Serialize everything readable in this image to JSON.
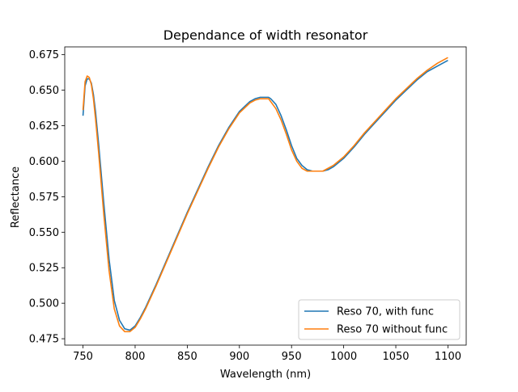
{
  "chart_data": {
    "type": "line",
    "title": "Dependance of width resonator",
    "xlabel": "Wavelength (nm)",
    "ylabel": "Reflectance",
    "xlim": [
      732.5,
      1117.5
    ],
    "ylim": [
      0.4705,
      0.6805
    ],
    "xticks": [
      750,
      800,
      850,
      900,
      950,
      1000,
      1050,
      1100
    ],
    "xtick_labels": [
      "750",
      "800",
      "850",
      "900",
      "950",
      "1000",
      "1050",
      "1100"
    ],
    "yticks": [
      0.475,
      0.5,
      0.525,
      0.55,
      0.575,
      0.6,
      0.625,
      0.65,
      0.675
    ],
    "ytick_labels": [
      "0.475",
      "0.500",
      "0.525",
      "0.550",
      "0.575",
      "0.600",
      "0.625",
      "0.650",
      "0.675"
    ],
    "grid": false,
    "legend_position": "lower right",
    "series": [
      {
        "name": "Reso 70, with func",
        "color": "#1f77b4",
        "x": [
          750,
          752,
          754,
          756,
          758,
          760,
          762,
          765,
          770,
          775,
          780,
          785,
          790,
          795,
          800,
          805,
          810,
          820,
          830,
          840,
          850,
          860,
          870,
          880,
          890,
          900,
          910,
          915,
          920,
          925,
          928,
          930,
          935,
          940,
          945,
          950,
          955,
          960,
          965,
          970,
          975,
          980,
          985,
          990,
          1000,
          1010,
          1020,
          1030,
          1040,
          1050,
          1060,
          1070,
          1080,
          1090,
          1100
        ],
        "y": [
          0.632,
          0.653,
          0.658,
          0.658,
          0.655,
          0.647,
          0.635,
          0.612,
          0.57,
          0.531,
          0.502,
          0.488,
          0.482,
          0.481,
          0.484,
          0.49,
          0.497,
          0.513,
          0.53,
          0.547,
          0.564,
          0.58,
          0.596,
          0.611,
          0.624,
          0.635,
          0.642,
          0.644,
          0.645,
          0.645,
          0.645,
          0.644,
          0.64,
          0.632,
          0.622,
          0.611,
          0.602,
          0.597,
          0.594,
          0.593,
          0.593,
          0.593,
          0.594,
          0.596,
          0.602,
          0.61,
          0.619,
          0.627,
          0.635,
          0.643,
          0.65,
          0.657,
          0.663,
          0.667,
          0.671
        ]
      },
      {
        "name": "Reso 70 without func",
        "color": "#ff7f0e",
        "x": [
          750,
          752,
          754,
          756,
          758,
          760,
          762,
          765,
          770,
          775,
          780,
          785,
          790,
          795,
          800,
          805,
          810,
          820,
          830,
          840,
          850,
          860,
          870,
          880,
          890,
          900,
          910,
          915,
          920,
          925,
          928,
          930,
          935,
          940,
          945,
          950,
          955,
          960,
          965,
          970,
          975,
          980,
          985,
          990,
          1000,
          1010,
          1020,
          1030,
          1040,
          1050,
          1060,
          1070,
          1080,
          1090,
          1100
        ],
        "y": [
          0.636,
          0.656,
          0.66,
          0.659,
          0.654,
          0.644,
          0.63,
          0.606,
          0.562,
          0.523,
          0.496,
          0.484,
          0.48,
          0.48,
          0.483,
          0.489,
          0.496,
          0.512,
          0.529,
          0.546,
          0.563,
          0.579,
          0.595,
          0.61,
          0.623,
          0.634,
          0.641,
          0.643,
          0.644,
          0.644,
          0.644,
          0.642,
          0.637,
          0.629,
          0.619,
          0.608,
          0.6,
          0.595,
          0.593,
          0.593,
          0.593,
          0.593,
          0.595,
          0.597,
          0.603,
          0.611,
          0.62,
          0.628,
          0.636,
          0.644,
          0.651,
          0.658,
          0.664,
          0.669,
          0.673
        ]
      }
    ]
  }
}
